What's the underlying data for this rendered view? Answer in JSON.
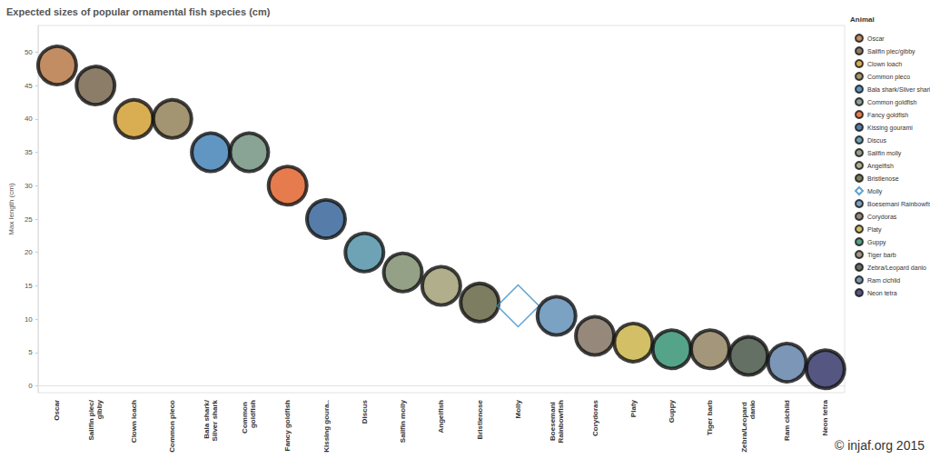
{
  "chart_data": {
    "type": "scatter",
    "title": "Expected sizes of popular ornamental fish species (cm)",
    "y_label": "Max length (cm)",
    "legend_title": "Animal",
    "annotations": [
      "© injaf.org 2015"
    ],
    "legend": "right",
    "grid": false,
    "categories": [
      "Oscar",
      "Sailfin plec/gibby",
      "Clown loach",
      "Common pleco",
      "Bala shark/Silver shark",
      "Common goldfish",
      "Fancy goldfish",
      "Kissing goura..",
      "Discus",
      "Sailfin molly",
      "Angelfish",
      "Bristlenose",
      "Molly",
      "Boesemani Rainbowfish",
      "Corydoras",
      "Platy",
      "Guppy",
      "Tiger barb",
      "Zebra/Leopard danio",
      "Ram cichlid",
      "Neon tetra"
    ],
    "ylim": [
      -1,
      54
    ],
    "yticks": [
      0,
      5,
      10,
      15,
      20,
      25,
      30,
      35,
      40,
      45,
      50
    ],
    "series": [
      {
        "name": "Oscar",
        "color": "#b4703c",
        "marker": "circle",
        "values": [
          48,
          null,
          null,
          null,
          null,
          null,
          null,
          null,
          null,
          null,
          null,
          null,
          null,
          null,
          null,
          null,
          null,
          null,
          null,
          null,
          null
        ]
      },
      {
        "name": "Sailfin plec/gibby",
        "color": "#6e5c42",
        "marker": "circle",
        "values": [
          null,
          45,
          null,
          null,
          null,
          null,
          null,
          null,
          null,
          null,
          null,
          null,
          null,
          null,
          null,
          null,
          null,
          null,
          null,
          null,
          null
        ]
      },
      {
        "name": "Clown loach",
        "color": "#d09a28",
        "marker": "circle",
        "values": [
          null,
          null,
          40,
          null,
          null,
          null,
          null,
          null,
          null,
          null,
          null,
          null,
          null,
          null,
          null,
          null,
          null,
          null,
          null,
          null,
          null
        ]
      },
      {
        "name": "Common pleco",
        "color": "#8c7a4e",
        "marker": "circle",
        "values": [
          null,
          null,
          null,
          40,
          null,
          null,
          null,
          null,
          null,
          null,
          null,
          null,
          null,
          null,
          null,
          null,
          null,
          null,
          null,
          null,
          null
        ]
      },
      {
        "name": "Bala shark/Silver shark",
        "color": "#3a7cb4",
        "marker": "circle",
        "values": [
          null,
          null,
          null,
          null,
          35,
          null,
          null,
          null,
          null,
          null,
          null,
          null,
          null,
          null,
          null,
          null,
          null,
          null,
          null,
          null,
          null
        ]
      },
      {
        "name": "Common goldfish",
        "color": "#6c8c7a",
        "marker": "circle",
        "values": [
          null,
          null,
          null,
          null,
          null,
          35,
          null,
          null,
          null,
          null,
          null,
          null,
          null,
          null,
          null,
          null,
          null,
          null,
          null,
          null,
          null
        ]
      },
      {
        "name": "Fancy goldfish",
        "color": "#e05a20",
        "marker": "circle",
        "values": [
          null,
          null,
          null,
          null,
          null,
          null,
          30,
          null,
          null,
          null,
          null,
          null,
          null,
          null,
          null,
          null,
          null,
          null,
          null,
          null,
          null
        ]
      },
      {
        "name": "Kissing gourami",
        "color": "#2c5c94",
        "marker": "circle",
        "values": [
          null,
          null,
          null,
          null,
          null,
          null,
          null,
          25,
          null,
          null,
          null,
          null,
          null,
          null,
          null,
          null,
          null,
          null,
          null,
          null,
          null
        ]
      },
      {
        "name": "Discus",
        "color": "#4a8ca4",
        "marker": "circle",
        "values": [
          null,
          null,
          null,
          null,
          null,
          null,
          null,
          null,
          20,
          null,
          null,
          null,
          null,
          null,
          null,
          null,
          null,
          null,
          null,
          null,
          null
        ]
      },
      {
        "name": "Sailfin molly",
        "color": "#7a8a68",
        "marker": "circle",
        "values": [
          null,
          null,
          null,
          null,
          null,
          null,
          null,
          null,
          null,
          17,
          null,
          null,
          null,
          null,
          null,
          null,
          null,
          null,
          null,
          null,
          null
        ]
      },
      {
        "name": "Angelfish",
        "color": "#9c9a6e",
        "marker": "circle",
        "values": [
          null,
          null,
          null,
          null,
          null,
          null,
          null,
          null,
          null,
          null,
          15,
          null,
          null,
          null,
          null,
          null,
          null,
          null,
          null,
          null,
          null
        ]
      },
      {
        "name": "Bristlenose",
        "color": "#5c5c3a",
        "marker": "circle",
        "values": [
          null,
          null,
          null,
          null,
          null,
          null,
          null,
          null,
          null,
          null,
          null,
          12.5,
          null,
          null,
          null,
          null,
          null,
          null,
          null,
          null,
          null
        ]
      },
      {
        "name": "Molly",
        "color": "#3a8cc4",
        "marker": "diamond-open",
        "values": [
          null,
          null,
          null,
          null,
          null,
          null,
          null,
          null,
          null,
          null,
          null,
          null,
          12,
          null,
          null,
          null,
          null,
          null,
          null,
          null,
          null
        ]
      },
      {
        "name": "Boesemani Rainbowfish",
        "color": "#5a8ab4",
        "marker": "circle",
        "values": [
          null,
          null,
          null,
          null,
          null,
          null,
          null,
          null,
          null,
          null,
          null,
          null,
          null,
          10.5,
          null,
          null,
          null,
          null,
          null,
          null,
          null
        ]
      },
      {
        "name": "Corydoras",
        "color": "#7c6c5a",
        "marker": "circle",
        "values": [
          null,
          null,
          null,
          null,
          null,
          null,
          null,
          null,
          null,
          null,
          null,
          null,
          null,
          null,
          7.5,
          null,
          null,
          null,
          null,
          null,
          null
        ]
      },
      {
        "name": "Platy",
        "color": "#c8b040",
        "marker": "circle",
        "values": [
          null,
          null,
          null,
          null,
          null,
          null,
          null,
          null,
          null,
          null,
          null,
          null,
          null,
          null,
          null,
          6.5,
          null,
          null,
          null,
          null,
          null
        ]
      },
      {
        "name": "Guppy",
        "color": "#2a8c6c",
        "marker": "circle",
        "values": [
          null,
          null,
          null,
          null,
          null,
          null,
          null,
          null,
          null,
          null,
          null,
          null,
          null,
          null,
          null,
          null,
          5.5,
          null,
          null,
          null,
          null
        ]
      },
      {
        "name": "Tiger barb",
        "color": "#8c7c5a",
        "marker": "circle",
        "values": [
          null,
          null,
          null,
          null,
          null,
          null,
          null,
          null,
          null,
          null,
          null,
          null,
          null,
          null,
          null,
          null,
          null,
          5.5,
          null,
          null,
          null
        ]
      },
      {
        "name": "Zebra/Leopard danio",
        "color": "#3c4c3c",
        "marker": "circle",
        "values": [
          null,
          null,
          null,
          null,
          null,
          null,
          null,
          null,
          null,
          null,
          null,
          null,
          null,
          null,
          null,
          null,
          null,
          null,
          4.5,
          null,
          null
        ]
      },
      {
        "name": "Ram cichlid",
        "color": "#5a7ca4",
        "marker": "circle",
        "values": [
          null,
          null,
          null,
          null,
          null,
          null,
          null,
          null,
          null,
          null,
          null,
          null,
          null,
          null,
          null,
          null,
          null,
          null,
          null,
          3.5,
          null
        ]
      },
      {
        "name": "Neon tetra",
        "color": "#2c2c64",
        "marker": "circle",
        "values": [
          null,
          null,
          null,
          null,
          null,
          null,
          null,
          null,
          null,
          null,
          null,
          null,
          null,
          null,
          null,
          null,
          null,
          null,
          null,
          null,
          2.5
        ]
      }
    ]
  }
}
